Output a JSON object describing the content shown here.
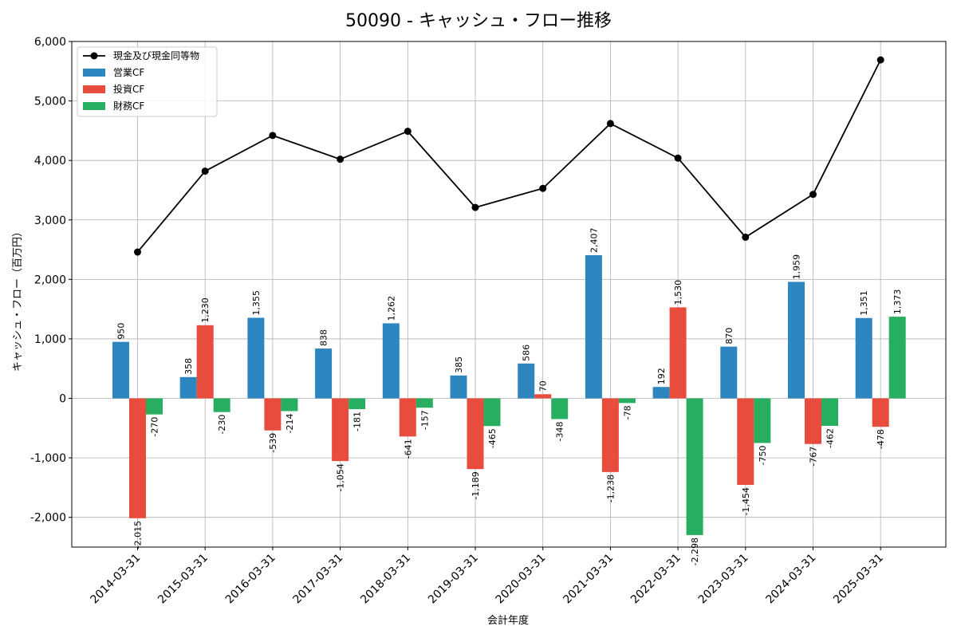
{
  "chart_data": {
    "type": "bar",
    "title": "50090 - キャッシュ・フロー推移",
    "xlabel": "会計年度",
    "ylabel": "キャッシュ・フロー（百万円）",
    "ylim": [
      -2500,
      6000
    ],
    "yticks": [
      -2000,
      -1000,
      0,
      1000,
      2000,
      3000,
      4000,
      5000,
      6000
    ],
    "ytick_labels": [
      "-2,000",
      "-1,000",
      "0",
      "1,000",
      "2,000",
      "3,000",
      "4,000",
      "5,000",
      "6,000"
    ],
    "grid": true,
    "legend_position": "top-left",
    "categories": [
      "2014-03-31",
      "2015-03-31",
      "2016-03-31",
      "2017-03-31",
      "2018-03-31",
      "2019-03-31",
      "2020-03-31",
      "2021-03-31",
      "2022-03-31",
      "2023-03-31",
      "2024-03-31",
      "2025-03-31"
    ],
    "series": [
      {
        "name": "営業CF",
        "type": "bar",
        "color": "#2e86c1",
        "values": [
          950,
          358,
          1355,
          838,
          1262,
          385,
          586,
          2407,
          192,
          870,
          1959,
          1351
        ],
        "labels": [
          "950",
          "358",
          "1,355",
          "838",
          "1,262",
          "385",
          "586",
          "2,407",
          "192",
          "870",
          "1,959",
          "1,351"
        ]
      },
      {
        "name": "投資CF",
        "type": "bar",
        "color": "#e74c3c",
        "values": [
          -2015,
          1230,
          -539,
          -1054,
          -641,
          -1189,
          70,
          -1238,
          1530,
          -1454,
          -767,
          -478
        ],
        "labels": [
          "-2,015",
          "1,230",
          "-539",
          "-1,054",
          "-641",
          "-1,189",
          "70",
          "-1,238",
          "1,530",
          "-1,454",
          "-767",
          "-478"
        ]
      },
      {
        "name": "財務CF",
        "type": "bar",
        "color": "#27ae60",
        "values": [
          -270,
          -230,
          -214,
          -181,
          -157,
          -465,
          -348,
          -78,
          -2298,
          -750,
          -462,
          1373
        ],
        "labels": [
          "-270",
          "-230",
          "-214",
          "-181",
          "-157",
          "-465",
          "-348",
          "-78",
          "-2,298",
          "-750",
          "-462",
          "1,373"
        ]
      },
      {
        "name": "現金及び現金同等物",
        "type": "line",
        "color": "#000000",
        "values": [
          2460,
          3820,
          4420,
          4020,
          4490,
          3210,
          3530,
          4620,
          4040,
          2710,
          3430,
          5690
        ]
      }
    ]
  }
}
